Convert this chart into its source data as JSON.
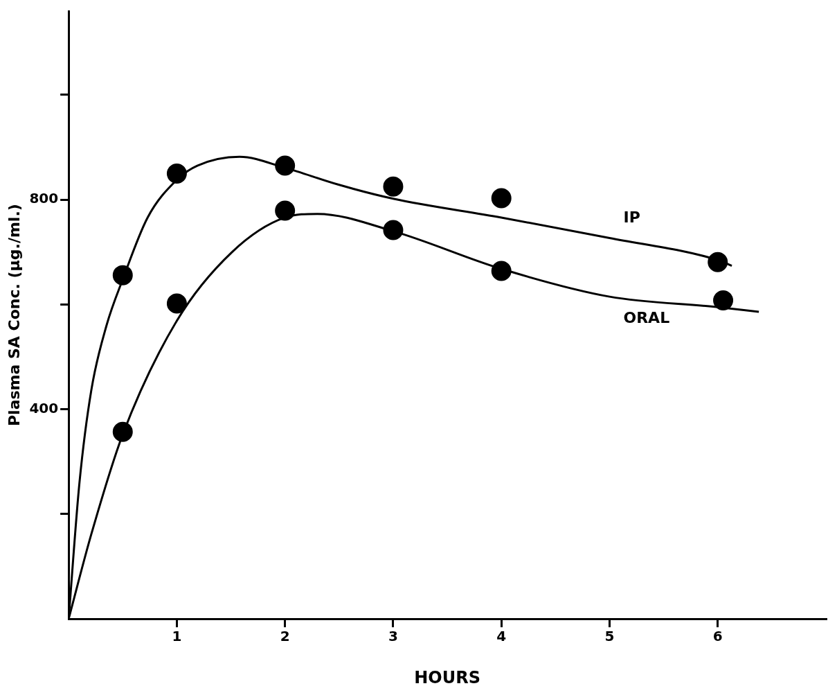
{
  "chart_data": {
    "type": "scatter",
    "xlabel": "HOURS",
    "ylabel": "Plasma SA Conc. (µg./ml.)",
    "xlim": [
      0,
      7
    ],
    "ylim": [
      0,
      1160
    ],
    "xticks": [
      1,
      2,
      3,
      4,
      5,
      6
    ],
    "yticks": [
      {
        "value": 200,
        "label": null
      },
      400,
      {
        "value": 600,
        "label": null
      },
      800,
      {
        "value": 1000,
        "label": null
      }
    ],
    "grid": false,
    "legend": false,
    "marker": "circle",
    "series": [
      {
        "type": "scatter",
        "color": "#000000",
        "x": [
          0.5,
          1,
          2,
          3,
          4,
          6
        ],
        "values": [
          656,
          850,
          865,
          825,
          803,
          681
        ]
      },
      {
        "type": "scatter",
        "color": "#000000",
        "x": [
          0.5,
          1,
          2,
          3,
          4,
          6.05
        ],
        "values": [
          357,
          602,
          779,
          742,
          664,
          608
        ]
      },
      {
        "type": "line",
        "name": "IP",
        "color": "#000000",
        "marker": "none",
        "line_style": "solid",
        "x": [
          0,
          0.1,
          0.21,
          0.35,
          0.5,
          0.73,
          1,
          1.19,
          1.58,
          2,
          2.49,
          3,
          4,
          5,
          6,
          6.13
        ],
        "values": [
          0,
          260,
          437,
          560,
          648,
          766,
          838,
          865,
          882,
          861,
          829,
          802,
          766,
          727,
          685,
          674
        ]
      },
      {
        "type": "line",
        "name": "ORAL",
        "color": "#000000",
        "marker": "none",
        "line_style": "solid",
        "x": [
          0,
          0.21,
          0.5,
          1,
          1.51,
          2,
          2.3,
          3,
          4,
          5,
          6,
          6.38
        ],
        "values": [
          0,
          162,
          352,
          569,
          700,
          766,
          773,
          740,
          668,
          615,
          595,
          586
        ]
      }
    ]
  }
}
